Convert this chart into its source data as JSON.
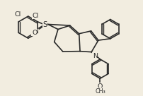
{
  "background_color": "#f2ede0",
  "line_color": "#2a2a2a",
  "line_width": 1.2,
  "font_size": 6.8,
  "figsize": [
    2.02,
    1.36
  ],
  "dpi": 100,
  "xlim": [
    0,
    10.2
  ],
  "ylim": [
    0,
    6.8
  ]
}
